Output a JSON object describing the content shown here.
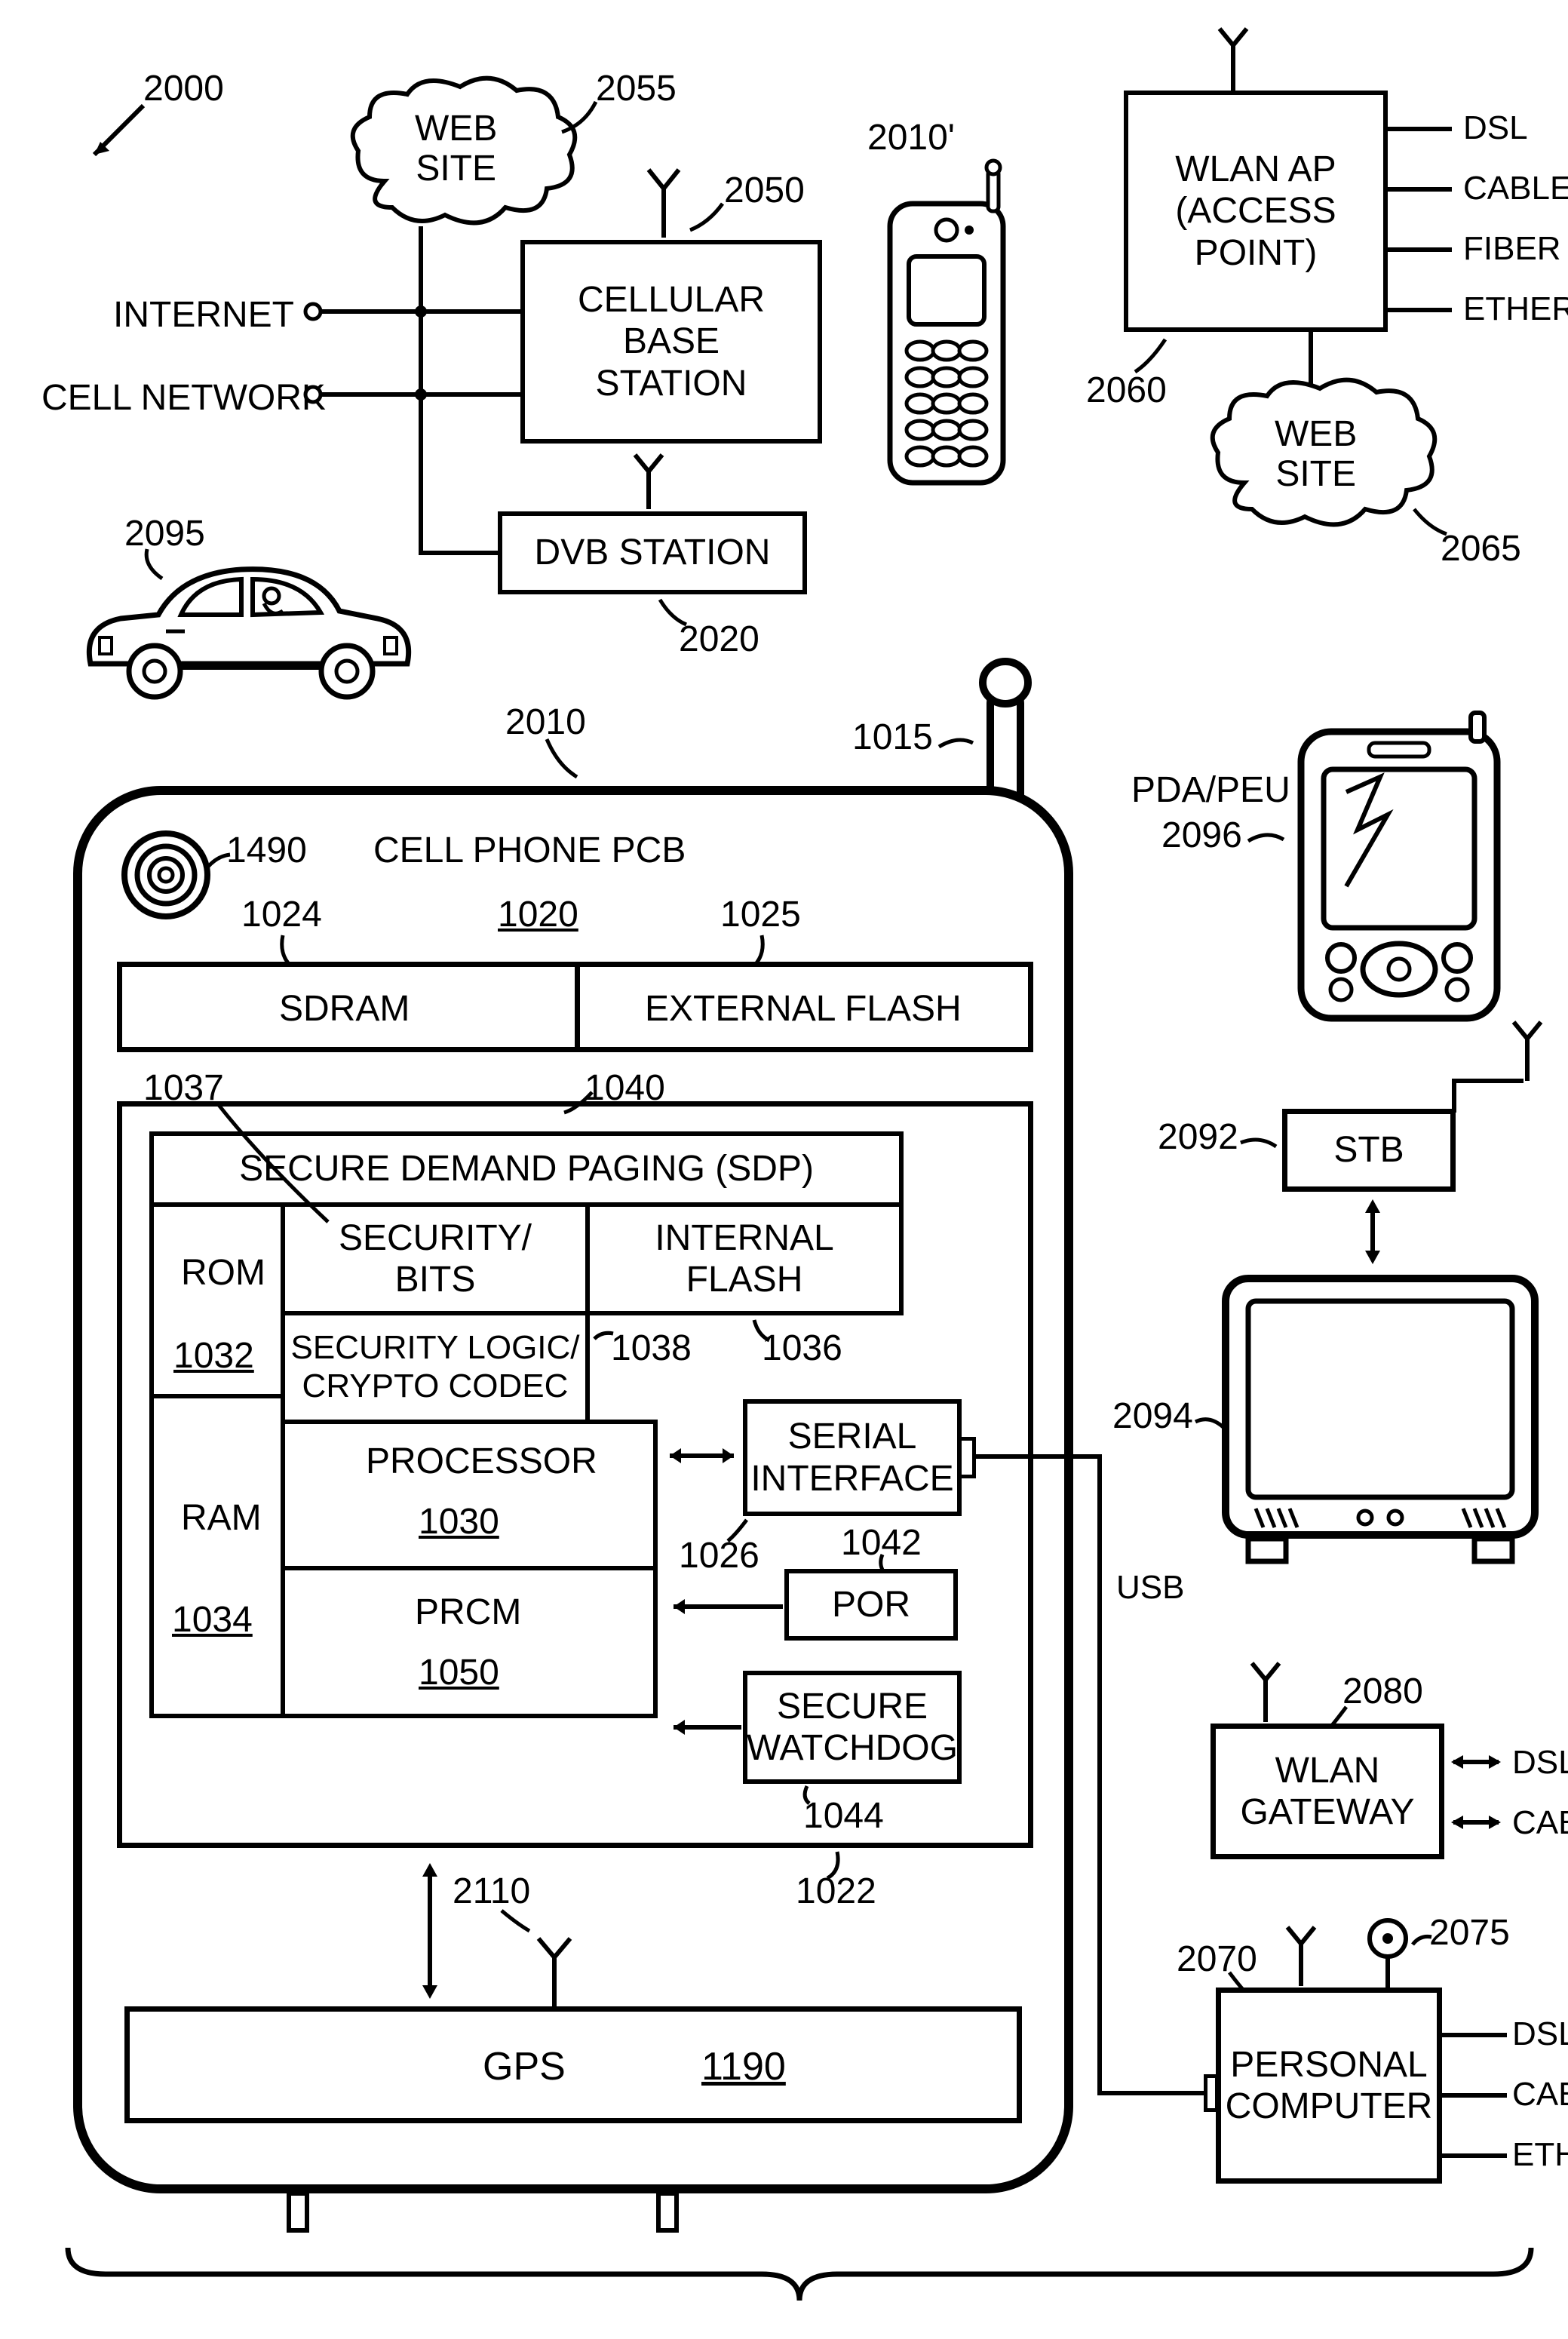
{
  "stroke": "#000000",
  "bg": "#ffffff",
  "fs_block": 48,
  "fs_ref": 48,
  "line_w": 6,
  "top": {
    "system_ref": "2000",
    "website1_ref": "2055",
    "website1_text": "WEB\nSITE",
    "internet_label": "INTERNET",
    "cellnet_label": "CELL NETWORK",
    "cell_base": "CELLULAR\nBASE\nSTATION",
    "cell_base_ref": "2050",
    "dvb": "DVB STATION",
    "dvb_ref": "2020",
    "phone_ref": "2010'",
    "wlan_ap": "WLAN AP\n(ACCESS\nPOINT)",
    "wlan_ap_ref": "2060",
    "wlan_lines": [
      "DSL",
      "CABLE",
      "FIBER",
      "ETHERNET"
    ],
    "website2_ref": "2065",
    "website2_text": "WEB\nSITE",
    "car_ref": "2095"
  },
  "phone": {
    "ref": "2010",
    "antenna_ref": "1015",
    "camera_ref": "1490",
    "pcb_title": "CELL PHONE PCB",
    "pcb_ref": "1020",
    "sdram": "SDRAM",
    "sdram_ref": "1024",
    "extflash": "EXTERNAL FLASH",
    "extflash_ref": "1025",
    "chip_ref": "1022",
    "sdp": "SECURE DEMAND PAGING (SDP)",
    "sdp_ref": "1040",
    "rom": "ROM",
    "rom_ref": "1032",
    "secbits": "SECURITY/\nBITS",
    "secbits_ref": "1037",
    "intflash": "INTERNAL\nFLASH",
    "intflash_ref": "1036",
    "seclogic": "SECURITY LOGIC/\nCRYPTO CODEC",
    "seclogic_ref": "1038",
    "processor": "PROCESSOR",
    "processor_ref": "1030",
    "ram": "RAM",
    "ram_ref": "1034",
    "prcm": "PRCM",
    "prcm_ref": "1050",
    "serial": "SERIAL\nINTERFACE",
    "serial_ref": "1026",
    "por": "POR",
    "por_ref": "1042",
    "watchdog": "SECURE\nWATCHDOG",
    "watchdog_ref": "1044",
    "gps": "GPS",
    "gps_ref": "1190",
    "gps_link_ref": "2110",
    "usb_label": "USB"
  },
  "right": {
    "pda_label": "PDA/PEU",
    "pda_ref": "2096",
    "stb": "STB",
    "stb_ref": "2092",
    "tv_ref": "2094",
    "wlan_gw": "WLAN\nGATEWAY",
    "wlan_gw_ref": "2080",
    "wlan_gw_lines": [
      "DSL",
      "CABLE"
    ],
    "pc": "PERSONAL\nCOMPUTER",
    "pc_ref": "2070",
    "cam_ref": "2075",
    "pc_lines": [
      "DSL",
      "CABLE",
      "ETHERNET"
    ]
  }
}
